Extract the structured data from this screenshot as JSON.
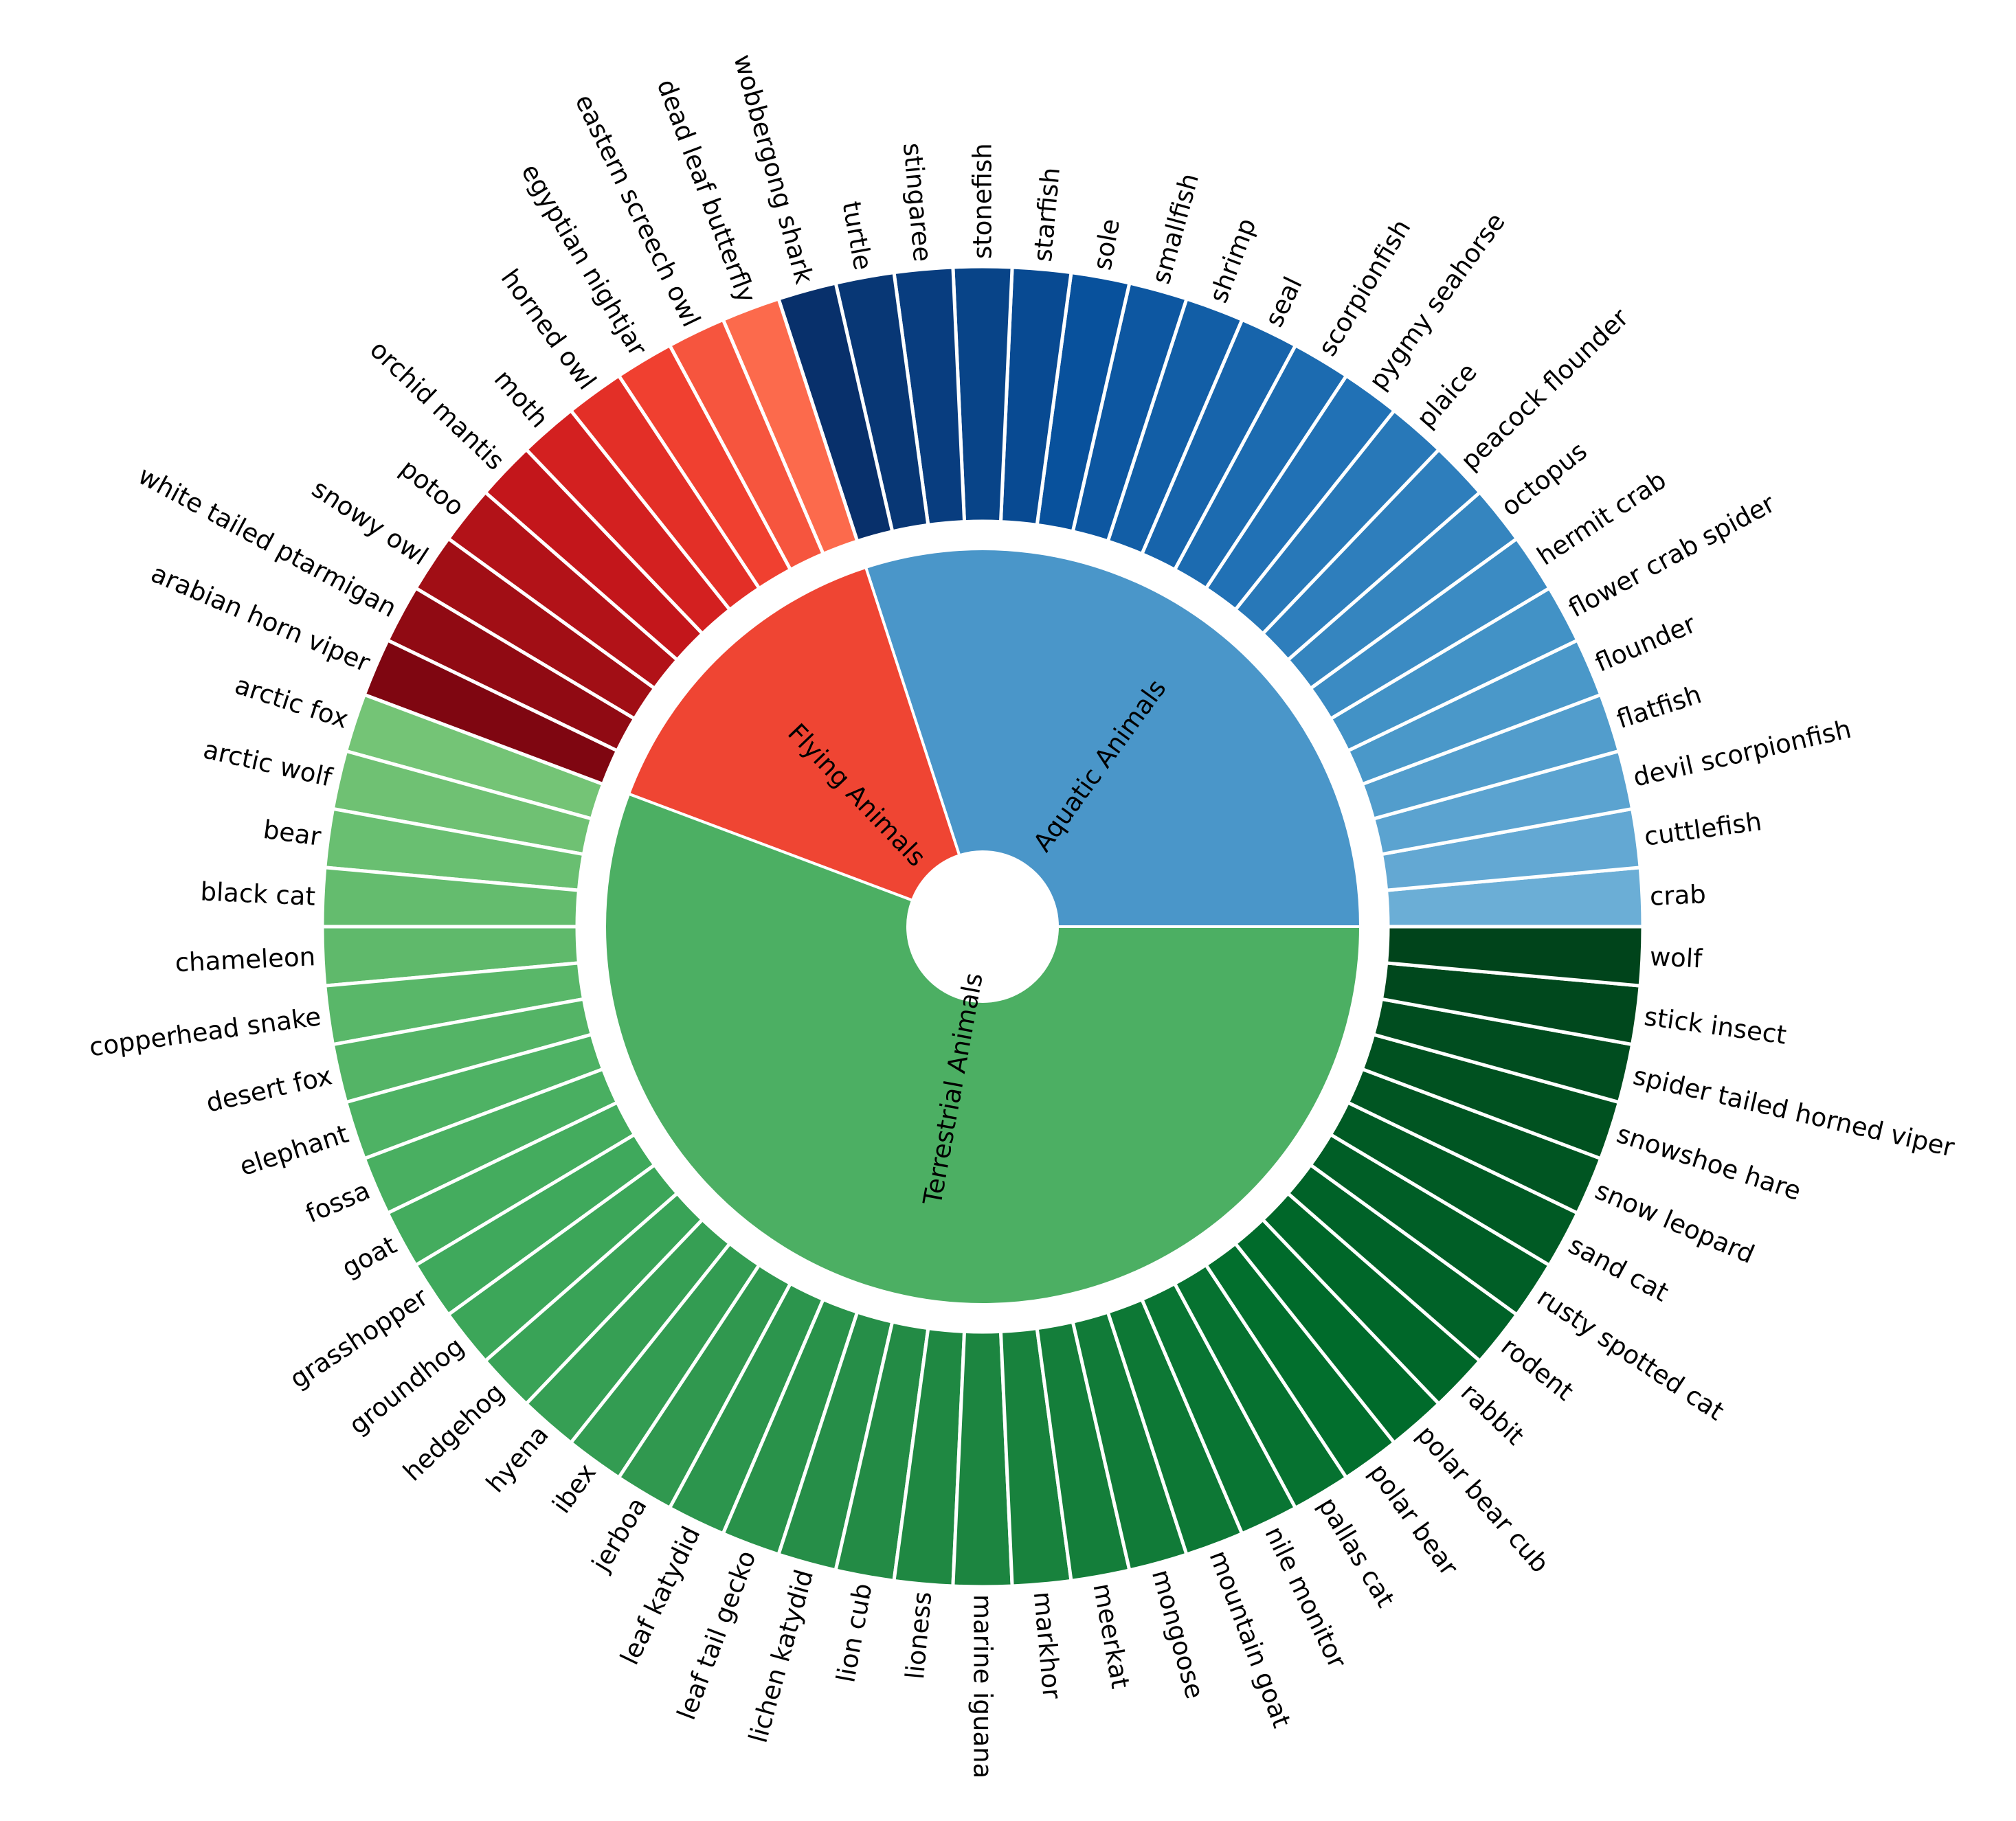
{
  "chart_data": {
    "type": "pie",
    "subtype": "nested-donut",
    "title": "",
    "inner": {
      "categories": [
        "Aquatic Animals",
        "Flying Animals",
        "Terrestrial Animals"
      ],
      "values": [
        21,
        10,
        39
      ],
      "colors": [
        "#4a96c9",
        "#ef4533",
        "#4caf63"
      ]
    },
    "outer": {
      "groups": [
        {
          "name": "Aquatic Animals",
          "palette": [
            "#6baed6",
            "#4292c6",
            "#2171b5",
            "#08519c",
            "#08306b"
          ],
          "labels": [
            "crab",
            "cuttlefish",
            "devil scorpionfish",
            "flatfish",
            "flounder",
            "flower crab spider",
            "hermit crab",
            "octopus",
            "peacock flounder",
            "plaice",
            "pygmy seahorse",
            "scorpionfish",
            "seal",
            "shrimp",
            "smallfish",
            "sole",
            "starfish",
            "stonefish",
            "stingaree",
            "turtle",
            "wobbergong shark"
          ]
        },
        {
          "name": "Flying Animals",
          "palette": [
            "#fc6a4c",
            "#ef3b2c",
            "#cb181d",
            "#a50f15",
            "#7f0611"
          ],
          "labels": [
            "dead leaf butterfly",
            "eastern screech owl",
            "egyptian nightjar",
            "horned owl",
            "moth",
            "orchid mantis",
            "potoo",
            "snowy owl",
            "white tailed ptarmigan",
            "arabian horn viper"
          ]
        },
        {
          "name": "Terrestrial Animals",
          "palette": [
            "#74c476",
            "#41ab5d",
            "#238b45",
            "#006d2c",
            "#00441b"
          ],
          "labels": [
            "arctic fox",
            "arctic wolf",
            "bear",
            "black cat",
            "chameleon",
            "copperhead snake",
            "desert fox",
            "elephant",
            "fossa",
            "goat",
            "grasshopper",
            "groundhog",
            "hedgehog",
            "hyena",
            "ibex",
            "jerboa",
            "leaf katydid",
            "leaf tail gecko",
            "lichen katydid",
            "lion cub",
            "lioness",
            "marine iguana",
            "markhor",
            "meerkat",
            "mongoose",
            "mountain goat",
            "nile monitor",
            "pallas cat",
            "polar bear",
            "polar bear cub",
            "rabbit",
            "rodent",
            "rusty spotted cat",
            "sand cat",
            "snow leopard",
            "snowshoe hare",
            "spider tailed horned viper",
            "stick insect",
            "wolf"
          ]
        }
      ],
      "value_per_item": 1
    },
    "start_angle_deg": 0,
    "direction": "counterclockwise",
    "legend": "none"
  }
}
